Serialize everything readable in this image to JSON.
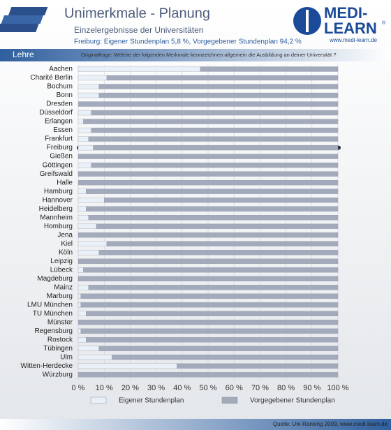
{
  "header": {
    "title": "Unimerkmale - Planung",
    "subtitle": "Einzelergebnisse der Universitäten",
    "highlight_note": "Freiburg: Eigener Stundenplan 5,8 %, Vorgegebener Stundenplan 94,2 %",
    "section": "Lehre",
    "question": "Originalfrage: Welche der folgenden Merkmale kennzeichnen allgemein die Ausbildung an deiner Universität ?"
  },
  "logo": {
    "line1": "MEDI-",
    "line2": "LEARN",
    "mark": "®",
    "url": "www.medi-learn.de"
  },
  "footer": {
    "source": "Quelle: Uni-Ranking 2009, www.medi-learn.de"
  },
  "chart_data": {
    "type": "stacked-barh",
    "categories": [
      "Aachen",
      "Charité Berlin",
      "Bochum",
      "Bonn",
      "Dresden",
      "Düsseldorf",
      "Erlangen",
      "Essen",
      "Frankfurt",
      "Freiburg",
      "Gießen",
      "Göttingen",
      "Greifswald",
      "Halle",
      "Hamburg",
      "Hannover",
      "Heidelberg",
      "Mannheim",
      "Homburg",
      "Jena",
      "Kiel",
      "Köln",
      "Leipzig",
      "Lübeck",
      "Magdeburg",
      "Mainz",
      "Marburg",
      "LMU München",
      "TU München",
      "Münster",
      "Regensburg",
      "Rostock",
      "Tübingen",
      "Ulm",
      "Witten-Herdecke",
      "Würzburg"
    ],
    "series": [
      {
        "name": "Eigener Stundenplan",
        "color": "#eaf0f7",
        "values": [
          47,
          11,
          8,
          8,
          0,
          5,
          2,
          5,
          4,
          5.8,
          0,
          5,
          0,
          0,
          3,
          10,
          3,
          4,
          7,
          0,
          11,
          8,
          0,
          2,
          0,
          4,
          1,
          1,
          3,
          0,
          1,
          3,
          8,
          13,
          38,
          0
        ]
      },
      {
        "name": "Vorgegebener Stundenplan",
        "color": "#a2aabb",
        "values": [
          53,
          89,
          92,
          92,
          100,
          95,
          98,
          95,
          96,
          94.2,
          100,
          95,
          100,
          100,
          97,
          90,
          97,
          96,
          93,
          100,
          89,
          92,
          100,
          98,
          100,
          96,
          99,
          99,
          97,
          100,
          99,
          97,
          92,
          87,
          62,
          100
        ]
      }
    ],
    "highlight": "Freiburg",
    "xlim": [
      0,
      100
    ],
    "xticks": [
      {
        "value": 0,
        "label": "0 %"
      },
      {
        "value": 10,
        "label": "10 %"
      },
      {
        "value": 20,
        "label": "20 %"
      },
      {
        "value": 30,
        "label": "30 %"
      },
      {
        "value": 40,
        "label": "40 %"
      },
      {
        "value": 50,
        "label": "50 %"
      },
      {
        "value": 60,
        "label": "60 %"
      },
      {
        "value": 70,
        "label": "70 %"
      },
      {
        "value": 80,
        "label": "80 %"
      },
      {
        "value": 90,
        "label": "90 %"
      },
      {
        "value": 100,
        "label": "100 %"
      }
    ],
    "grid": true
  }
}
